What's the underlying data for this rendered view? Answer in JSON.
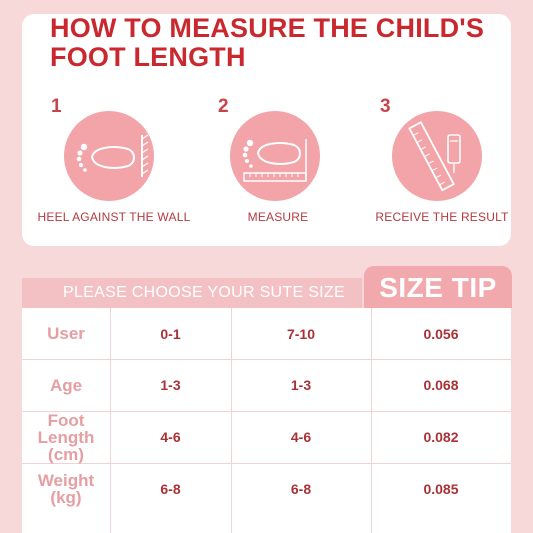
{
  "title_line1": "HOW TO MEASURE THE CHILD'S",
  "title_line2": "FOOT LENGTH",
  "steps": [
    {
      "number": "1",
      "label": "HEEL AGAINST THE WALL",
      "icon": "foot-against-wall-icon"
    },
    {
      "number": "2",
      "label": "MEASURE",
      "icon": "foot-on-ruler-icon"
    },
    {
      "number": "3",
      "label": "RECEIVE THE RESULT",
      "icon": "ruler-result-icon"
    }
  ],
  "choose_text": "PLEASE CHOOSE YOUR SUTE SIZE",
  "size_tip": "SIZE TIP",
  "table": {
    "rows": [
      {
        "head": [
          "User"
        ],
        "values": [
          "0-1",
          "7-10",
          "0.056"
        ]
      },
      {
        "head": [
          "Age"
        ],
        "values": [
          "1-3",
          "1-3",
          "0.068"
        ]
      },
      {
        "head": [
          "Foot",
          "Length",
          "(cm)"
        ],
        "values": [
          "4-6",
          "4-6",
          "0.082"
        ]
      },
      {
        "head": [
          "Weight",
          "(kg)"
        ],
        "values": [
          "6-8",
          "6-8",
          "0.085"
        ]
      }
    ]
  },
  "colors": {
    "background": "#f7d9da",
    "title_red": "#c9282e",
    "circle_pink": "#f3a4a9",
    "value_red": "#a83237",
    "row_head_pink": "#e59ea2"
  }
}
